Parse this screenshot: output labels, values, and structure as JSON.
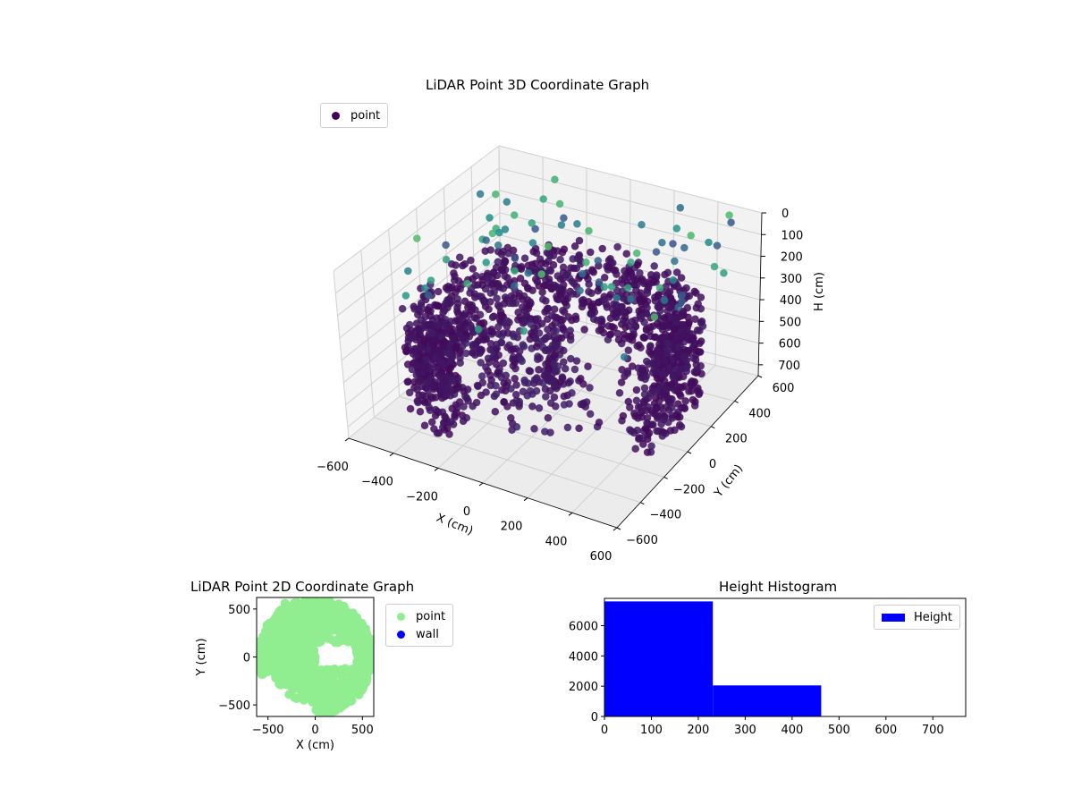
{
  "chart_data": [
    {
      "type": "scatter3d",
      "title": "LiDAR Point 3D Coordinate Graph",
      "xlabel": "X (cm)",
      "ylabel": "Y (cm)",
      "zlabel": "H (cm)",
      "xticks": [
        "−600",
        "−400",
        "−200",
        "0",
        "200",
        "400",
        "600"
      ],
      "yticks": [
        "−600",
        "−400",
        "−200",
        "0",
        "200",
        "400",
        "600"
      ],
      "zticks": [
        "0",
        "100",
        "200",
        "300",
        "400",
        "500",
        "600",
        "700"
      ],
      "xlim": [
        -600,
        600
      ],
      "ylim": [
        -600,
        600
      ],
      "zlim": [
        0,
        750
      ],
      "z_inverted": true,
      "grid": true,
      "colormap": "viridis",
      "legend": {
        "position": "top-left",
        "entries": [
          {
            "label": "point",
            "color": "#440154"
          }
        ]
      },
      "shape": "dense ring of low points forming a curved wall around the origin, radius about 450–600 cm, with sparse higher points above"
    },
    {
      "type": "scatter",
      "title": "LiDAR Point 2D Coordinate Graph",
      "xlabel": "X (cm)",
      "ylabel": "Y (cm)",
      "xticks": [
        "−500",
        "0",
        "500"
      ],
      "yticks": [
        "500",
        "0",
        "−500"
      ],
      "xlim": [
        -620,
        620
      ],
      "ylim": [
        -620,
        620
      ],
      "legend": {
        "position": "outside-right",
        "entries": [
          {
            "label": "point",
            "color": "#90ee90"
          },
          {
            "label": "wall",
            "color": "#0000ff"
          }
        ]
      }
    },
    {
      "type": "bar",
      "title": "Height Histogram",
      "xticks": [
        "0",
        "100",
        "200",
        "300",
        "400",
        "500",
        "600",
        "700"
      ],
      "yticks": [
        "0",
        "2000",
        "4000",
        "6000"
      ],
      "xlim": [
        0,
        770
      ],
      "ylim": [
        0,
        7800
      ],
      "bins": [
        {
          "x0": 0,
          "x1": 231,
          "count": 7600
        },
        {
          "x0": 231,
          "x1": 462,
          "count": 2050
        },
        {
          "x0": 462,
          "x1": 693,
          "count": 30
        }
      ],
      "color": "#0000ff",
      "legend": {
        "position": "top-right",
        "entries": [
          {
            "label": "Height",
            "color": "#0000ff"
          }
        ]
      }
    }
  ]
}
